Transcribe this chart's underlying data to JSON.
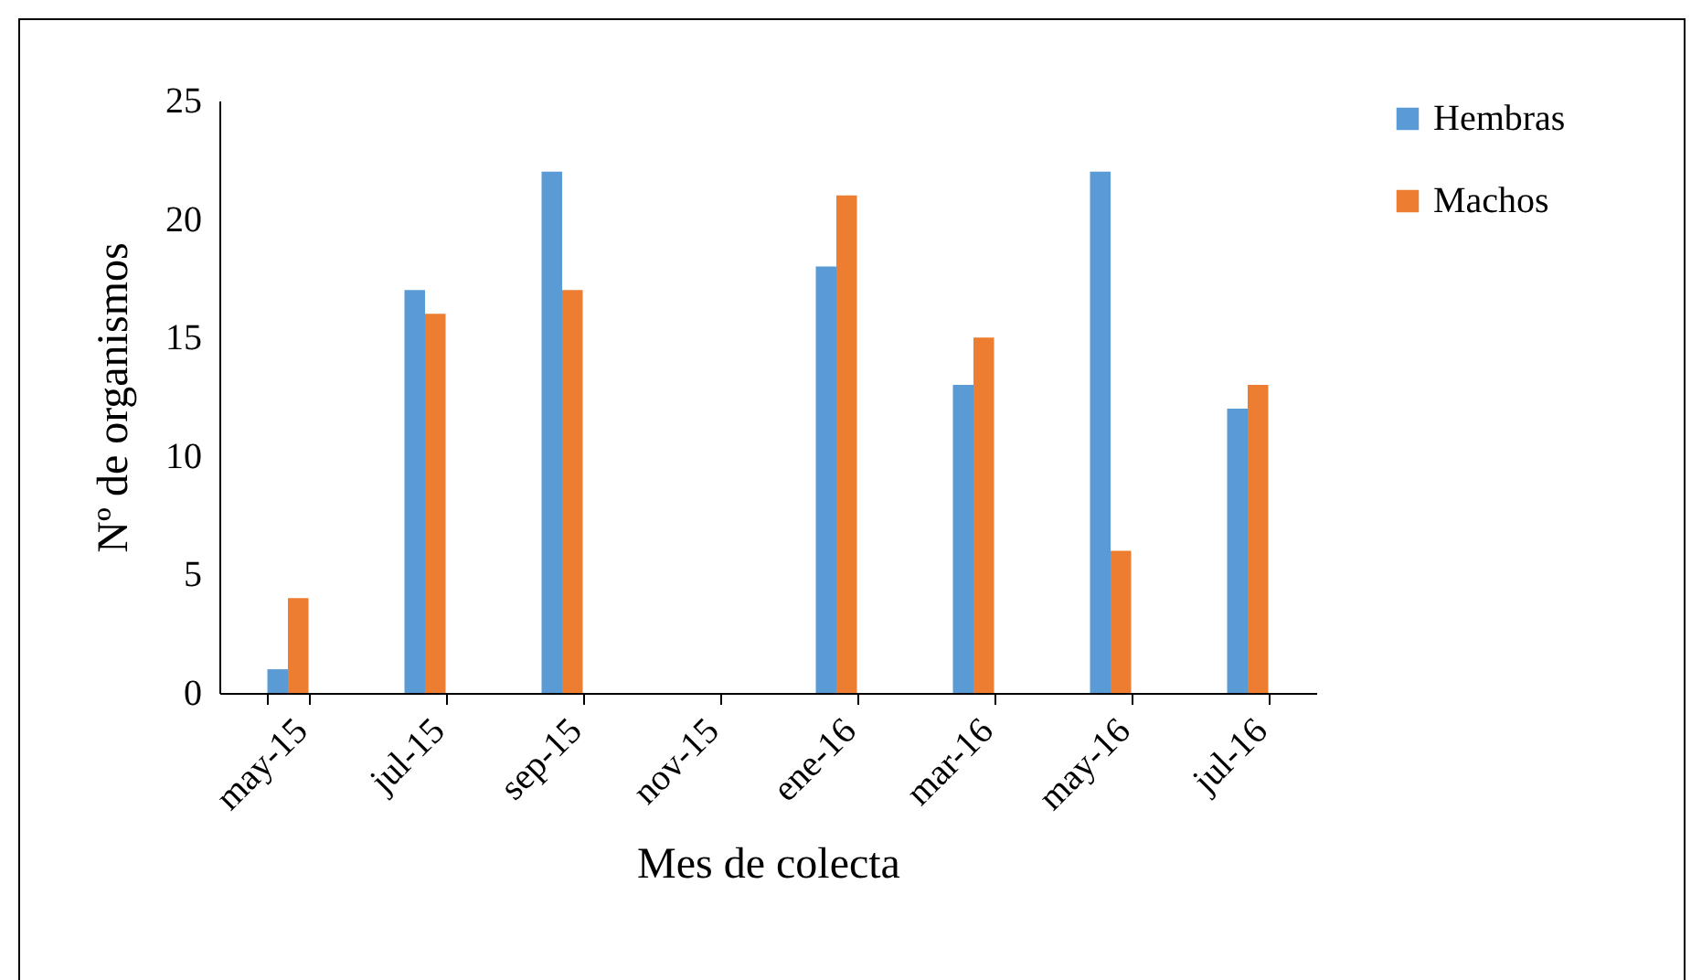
{
  "chart_data": {
    "type": "bar",
    "xlabel": "Mes de colecta",
    "ylabel": "Nº de organismos",
    "categories": [
      "may-15",
      "jul-15",
      "sep-15",
      "nov-15",
      "ene-16",
      "mar-16",
      "may-16",
      "jul-16"
    ],
    "series": [
      {
        "name": "Hembras",
        "color": "#5b9bd5",
        "values": [
          1,
          17,
          22,
          0,
          18,
          13,
          22,
          12
        ]
      },
      {
        "name": "Machos",
        "color": "#ed7d31",
        "values": [
          4,
          16,
          17,
          0,
          21,
          15,
          6,
          13
        ]
      }
    ],
    "ylim": [
      0,
      25
    ],
    "yticks": [
      0,
      5,
      10,
      15,
      20,
      25
    ],
    "grid": false,
    "legend": "right"
  }
}
